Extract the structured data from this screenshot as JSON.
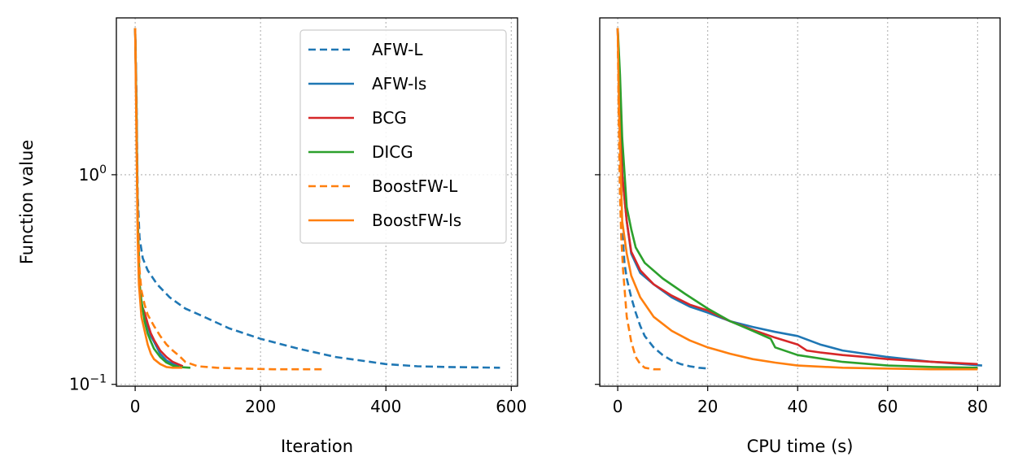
{
  "chart_data": [
    {
      "type": "line",
      "xlabel": "Iteration",
      "ylabel": "Function value",
      "yscale": "log",
      "xlim": [
        -30,
        610
      ],
      "ylim": [
        0.098,
        5.6
      ],
      "xticks": [
        0,
        200,
        400,
        600
      ],
      "yticks": [
        {
          "value": 1,
          "base": "10",
          "exp": "0"
        },
        {
          "value": 0.1,
          "base": "10",
          "exp": "−1"
        }
      ],
      "grid": true,
      "legend": "upper-right",
      "series": [
        {
          "name": "AFW-L",
          "color": "#1f77b4",
          "dash": true,
          "x": [
            0,
            2,
            4,
            7,
            12,
            20,
            35,
            55,
            80,
            110,
            150,
            200,
            260,
            320,
            400,
            450,
            500,
            582
          ],
          "y": [
            5.0,
            2.5,
            0.8,
            0.5,
            0.4,
            0.35,
            0.3,
            0.26,
            0.23,
            0.21,
            0.185,
            0.165,
            0.148,
            0.135,
            0.125,
            0.122,
            0.121,
            0.12
          ]
        },
        {
          "name": "AFW-ls",
          "color": "#1f77b4",
          "dash": false,
          "x": [
            0,
            2,
            4,
            7,
            10,
            15,
            20,
            25,
            30,
            40,
            50,
            60,
            70
          ],
          "y": [
            5.0,
            2.0,
            0.6,
            0.3,
            0.24,
            0.21,
            0.19,
            0.17,
            0.16,
            0.14,
            0.13,
            0.125,
            0.122
          ]
        },
        {
          "name": "BCG",
          "color": "#d62728",
          "dash": false,
          "x": [
            0,
            2,
            4,
            7,
            10,
            15,
            20,
            25,
            30,
            40,
            50,
            60,
            76
          ],
          "y": [
            5.0,
            2.0,
            0.6,
            0.3,
            0.24,
            0.22,
            0.195,
            0.175,
            0.163,
            0.145,
            0.135,
            0.128,
            0.122
          ]
        },
        {
          "name": "DICG",
          "color": "#2ca02c",
          "dash": false,
          "x": [
            0,
            2,
            4,
            7,
            10,
            15,
            20,
            25,
            30,
            40,
            50,
            60,
            70,
            88
          ],
          "y": [
            5.0,
            2.0,
            0.6,
            0.3,
            0.25,
            0.2,
            0.175,
            0.16,
            0.148,
            0.135,
            0.127,
            0.123,
            0.121,
            0.12
          ]
        },
        {
          "name": "BoostFW-L",
          "color": "#ff7f0e",
          "dash": true,
          "x": [
            0,
            2,
            4,
            7,
            10,
            15,
            20,
            30,
            40,
            50,
            60,
            70,
            80,
            100,
            130,
            170,
            220,
            300
          ],
          "y": [
            5.0,
            2.0,
            0.7,
            0.35,
            0.28,
            0.24,
            0.215,
            0.19,
            0.17,
            0.155,
            0.145,
            0.137,
            0.128,
            0.122,
            0.12,
            0.119,
            0.118,
            0.118
          ]
        },
        {
          "name": "BoostFW-ls",
          "color": "#ff7f0e",
          "dash": false,
          "x": [
            0,
            2,
            4,
            6,
            8,
            10,
            15,
            20,
            25,
            30,
            40,
            50,
            60,
            75
          ],
          "y": [
            5.0,
            1.5,
            0.5,
            0.3,
            0.25,
            0.21,
            0.18,
            0.155,
            0.14,
            0.132,
            0.125,
            0.121,
            0.12,
            0.12
          ]
        }
      ]
    },
    {
      "type": "line",
      "xlabel": "CPU time (s)",
      "ylabel": "",
      "yscale": "log",
      "xlim": [
        -4,
        85
      ],
      "ylim": [
        0.098,
        5.6
      ],
      "xticks": [
        0,
        20,
        40,
        60,
        80
      ],
      "grid": true,
      "series": [
        {
          "color": "#1f77b4",
          "dash": true,
          "x": [
            0,
            0.3,
            0.6,
            1,
            1.5,
            2,
            3,
            4,
            5,
            6,
            8,
            10,
            12,
            14,
            16,
            18,
            20
          ],
          "y": [
            5.0,
            2.0,
            0.9,
            0.55,
            0.38,
            0.32,
            0.26,
            0.22,
            0.19,
            0.17,
            0.15,
            0.138,
            0.13,
            0.125,
            0.122,
            0.12,
            0.119
          ]
        },
        {
          "color": "#1f77b4",
          "dash": false,
          "x": [
            0,
            0.5,
            1,
            2,
            3,
            5,
            8,
            12,
            16,
            20,
            25,
            30,
            35,
            40,
            45,
            50,
            55,
            60,
            70,
            81
          ],
          "y": [
            5.0,
            2.0,
            1.0,
            0.6,
            0.42,
            0.34,
            0.3,
            0.26,
            0.235,
            0.22,
            0.2,
            0.188,
            0.178,
            0.17,
            0.155,
            0.145,
            0.14,
            0.135,
            0.128,
            0.123
          ]
        },
        {
          "color": "#d62728",
          "dash": false,
          "x": [
            0,
            0.5,
            1,
            2,
            3,
            5,
            8,
            12,
            16,
            20,
            25,
            30,
            35,
            40,
            42,
            45,
            50,
            55,
            60,
            70,
            80
          ],
          "y": [
            5.0,
            2.0,
            1.0,
            0.6,
            0.43,
            0.35,
            0.3,
            0.265,
            0.24,
            0.225,
            0.2,
            0.182,
            0.167,
            0.155,
            0.145,
            0.142,
            0.138,
            0.135,
            0.132,
            0.128,
            0.125
          ]
        },
        {
          "color": "#2ca02c",
          "dash": false,
          "x": [
            0,
            0.5,
            1,
            2,
            3,
            4,
            6,
            10,
            15,
            20,
            25,
            30,
            34,
            35,
            40,
            50,
            60,
            70,
            80
          ],
          "y": [
            5.0,
            3.0,
            1.5,
            0.7,
            0.55,
            0.45,
            0.38,
            0.32,
            0.27,
            0.23,
            0.2,
            0.18,
            0.165,
            0.15,
            0.138,
            0.128,
            0.123,
            0.121,
            0.12
          ]
        },
        {
          "color": "#ff7f0e",
          "dash": true,
          "x": [
            0,
            0.2,
            0.5,
            0.8,
            1.2,
            1.6,
            2,
            3,
            4,
            5,
            6,
            8,
            10
          ],
          "y": [
            5.0,
            2.0,
            0.8,
            0.5,
            0.35,
            0.27,
            0.21,
            0.16,
            0.135,
            0.125,
            0.12,
            0.118,
            0.118
          ]
        },
        {
          "color": "#ff7f0e",
          "dash": false,
          "x": [
            0,
            0.3,
            0.7,
            1,
            2,
            3,
            5,
            8,
            12,
            16,
            20,
            25,
            30,
            35,
            40,
            50,
            60,
            70,
            80
          ],
          "y": [
            5.0,
            2.0,
            1.0,
            0.6,
            0.42,
            0.33,
            0.26,
            0.21,
            0.18,
            0.162,
            0.15,
            0.14,
            0.132,
            0.127,
            0.123,
            0.12,
            0.119,
            0.118,
            0.118
          ]
        }
      ]
    }
  ]
}
